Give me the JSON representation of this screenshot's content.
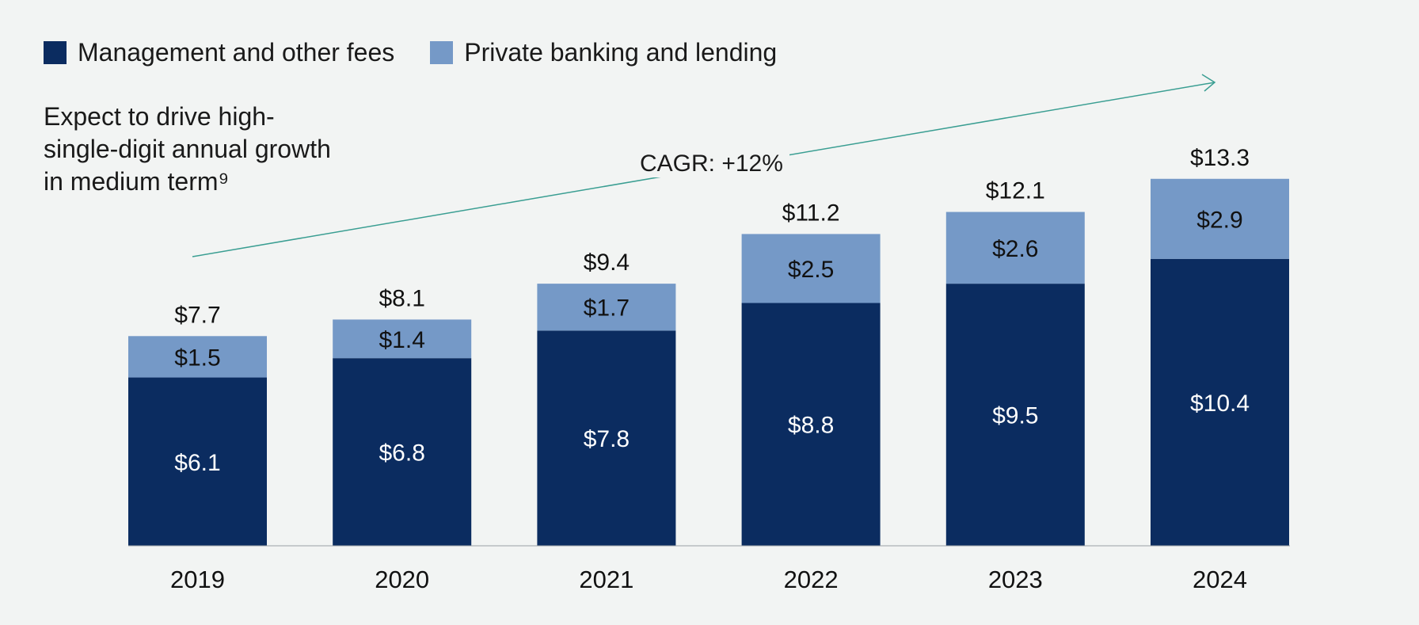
{
  "legend": {
    "management": "Management and other fees",
    "private": "Private banking and lending"
  },
  "note": {
    "line1": "Expect to drive high-",
    "line2": "single-digit annual growth",
    "line3": "in medium term⁹"
  },
  "cagr_label": "CAGR: +12%",
  "colors": {
    "management": "#0b2c60",
    "private": "#7599c7",
    "arrow": "#3a9e92",
    "background": "#f2f4f3"
  },
  "chart_data": {
    "type": "bar",
    "stacked": true,
    "categories": [
      "2019",
      "2020",
      "2021",
      "2022",
      "2023",
      "2024"
    ],
    "series": [
      {
        "name": "Management and other fees",
        "values": [
          6.1,
          6.8,
          7.8,
          8.8,
          9.5,
          10.4
        ],
        "labels": [
          "$6.1",
          "$6.8",
          "$7.8",
          "$8.8",
          "$9.5",
          "$10.4"
        ]
      },
      {
        "name": "Private banking and lending",
        "values": [
          1.5,
          1.4,
          1.7,
          2.5,
          2.6,
          2.9
        ],
        "labels": [
          "$1.5",
          "$1.4",
          "$1.7",
          "$2.5",
          "$2.6",
          "$2.9"
        ]
      }
    ],
    "totals": [
      7.7,
      8.1,
      9.4,
      11.2,
      12.1,
      13.3
    ],
    "total_labels": [
      "$7.7",
      "$8.1",
      "$9.4",
      "$11.2",
      "$12.1",
      "$13.3"
    ],
    "legend_position": "top-left",
    "grid": false
  }
}
